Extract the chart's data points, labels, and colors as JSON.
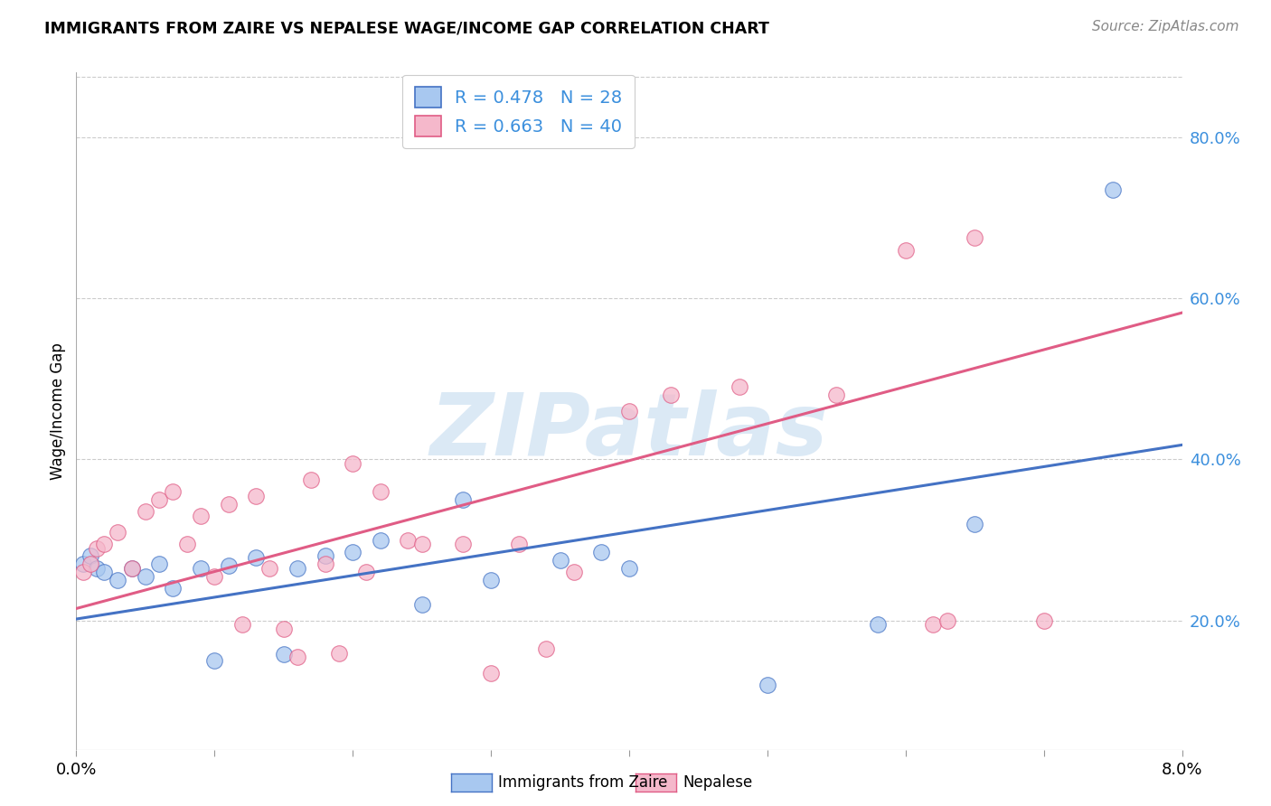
{
  "title": "IMMIGRANTS FROM ZAIRE VS NEPALESE WAGE/INCOME GAP CORRELATION CHART",
  "source": "Source: ZipAtlas.com",
  "ylabel": "Wage/Income Gap",
  "ytick_labels": [
    "20.0%",
    "40.0%",
    "60.0%",
    "80.0%"
  ],
  "ytick_values": [
    0.2,
    0.4,
    0.6,
    0.8
  ],
  "xlim": [
    0.0,
    0.08
  ],
  "ylim": [
    0.04,
    0.88
  ],
  "legend_label1": "R = 0.478   N = 28",
  "legend_label2": "R = 0.663   N = 40",
  "legend_text_color": "#3b8fdd",
  "watermark": "ZIPatlas",
  "blue_scatter_color": "#a8c8f0",
  "pink_scatter_color": "#f5b8cb",
  "blue_line_color": "#4472c4",
  "pink_line_color": "#e05c85",
  "blue_x": [
    0.0005,
    0.001,
    0.0015,
    0.002,
    0.003,
    0.004,
    0.005,
    0.006,
    0.007,
    0.009,
    0.01,
    0.011,
    0.013,
    0.015,
    0.016,
    0.018,
    0.02,
    0.022,
    0.025,
    0.028,
    0.03,
    0.035,
    0.038,
    0.04,
    0.05,
    0.058,
    0.065,
    0.075
  ],
  "blue_y": [
    0.27,
    0.28,
    0.265,
    0.26,
    0.25,
    0.265,
    0.255,
    0.27,
    0.24,
    0.265,
    0.15,
    0.268,
    0.278,
    0.158,
    0.265,
    0.28,
    0.285,
    0.3,
    0.22,
    0.35,
    0.25,
    0.275,
    0.285,
    0.265,
    0.12,
    0.195,
    0.32,
    0.735
  ],
  "pink_x": [
    0.0005,
    0.001,
    0.0015,
    0.002,
    0.003,
    0.004,
    0.005,
    0.006,
    0.007,
    0.008,
    0.009,
    0.01,
    0.011,
    0.012,
    0.013,
    0.014,
    0.015,
    0.016,
    0.017,
    0.018,
    0.019,
    0.02,
    0.021,
    0.022,
    0.024,
    0.025,
    0.028,
    0.03,
    0.032,
    0.034,
    0.036,
    0.04,
    0.043,
    0.048,
    0.055,
    0.06,
    0.062,
    0.063,
    0.065,
    0.07
  ],
  "pink_y": [
    0.26,
    0.27,
    0.29,
    0.295,
    0.31,
    0.265,
    0.335,
    0.35,
    0.36,
    0.295,
    0.33,
    0.255,
    0.345,
    0.195,
    0.355,
    0.265,
    0.19,
    0.155,
    0.375,
    0.27,
    0.16,
    0.395,
    0.26,
    0.36,
    0.3,
    0.295,
    0.295,
    0.135,
    0.295,
    0.165,
    0.26,
    0.46,
    0.48,
    0.49,
    0.48,
    0.66,
    0.195,
    0.2,
    0.675,
    0.2
  ],
  "blue_line_x0": 0.0,
  "blue_line_y0": 0.202,
  "blue_line_x1": 0.08,
  "blue_line_y1": 0.418,
  "pink_line_x0": 0.0,
  "pink_line_y0": 0.215,
  "pink_line_x1": 0.08,
  "pink_line_y1": 0.582
}
